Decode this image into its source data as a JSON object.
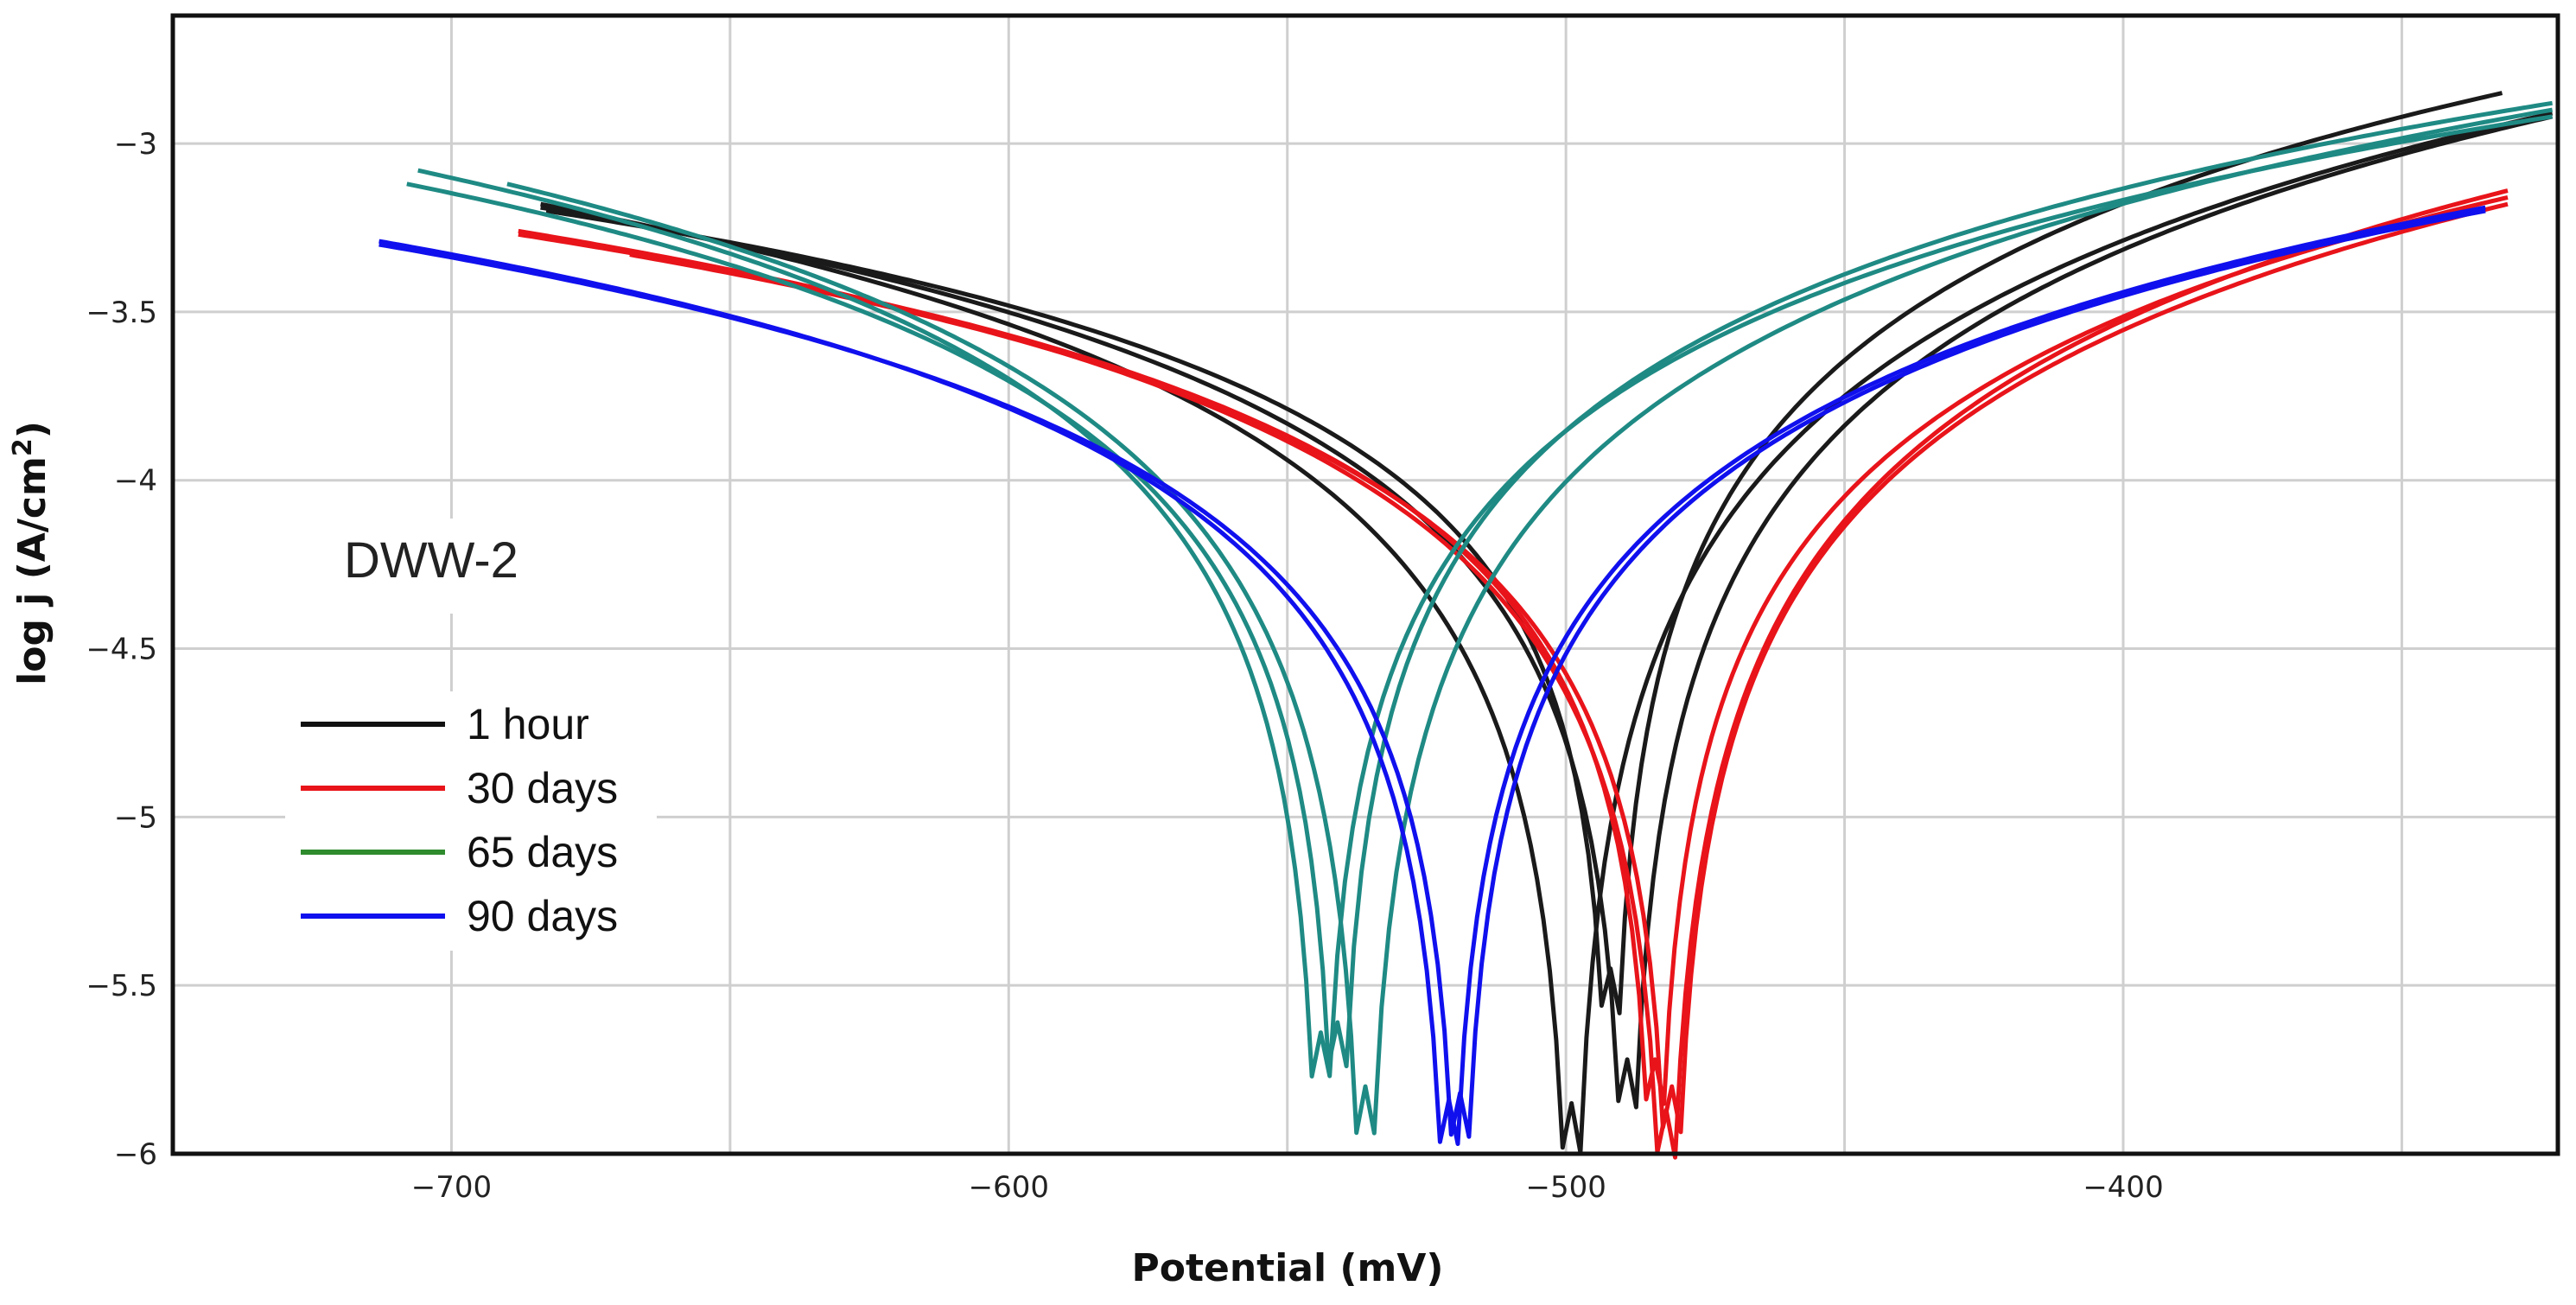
{
  "chart_data": {
    "type": "line",
    "title": "",
    "annotation": "DWW-2",
    "xlabel": "Potential (mV)",
    "ylabel": "log j (A/cm2)",
    "ylabel_base": "log j (A/cm",
    "ylabel_sup": "2",
    "ylabel_close": ")",
    "xlim": [
      -750,
      -322
    ],
    "ylim": [
      -6,
      -2.62
    ],
    "xticks": [
      -700,
      -600,
      -500,
      -400
    ],
    "xticks_grid": [
      -700,
      -650,
      -600,
      -550,
      -500,
      -450,
      -400,
      -350
    ],
    "xtick_labels": [
      "−700",
      "−600",
      "−500",
      "−400"
    ],
    "yticks": [
      -3,
      -3.5,
      -4,
      -4.5,
      -5,
      -5.5,
      -6
    ],
    "ytick_labels": [
      "−3",
      "−3.5",
      "−4",
      "−4.5",
      "−5",
      "−5.5",
      "−6"
    ],
    "grid": true,
    "legend_position": "lower-left",
    "series": [
      {
        "name": "1 hour",
        "color": "#1a1a1a",
        "legend_color": "#111111",
        "curves": [
          {
            "start": [
              -684,
              -3.18
            ],
            "ecorr": -499,
            "jmin": -5.85,
            "end": [
              -323,
              -2.91
            ]
          },
          {
            "start": [
              -684,
              -3.19
            ],
            "ecorr": -489,
            "jmin": -5.72,
            "end": [
              -323,
              -2.92
            ]
          },
          {
            "start": [
              -683,
              -3.2
            ],
            "ecorr": -492,
            "jmin": -5.45,
            "end": [
              -332,
              -2.85
            ]
          }
        ]
      },
      {
        "name": "30 days",
        "color": "#e8141a",
        "legend_color": "#e8141a",
        "curves": [
          {
            "start": [
              -688,
              -3.26
            ],
            "ecorr": -482,
            "jmin": -5.87,
            "end": [
              -331,
              -3.14
            ]
          },
          {
            "start": [
              -688,
              -3.27
            ],
            "ecorr": -484,
            "jmin": -5.72,
            "end": [
              -331,
              -3.16
            ]
          },
          {
            "start": [
              -668,
              -3.33
            ],
            "ecorr": -481,
            "jmin": -5.8,
            "end": [
              -331,
              -3.18
            ]
          }
        ]
      },
      {
        "name": "65 days",
        "color": "#1f8a84",
        "legend_color": "#2e8b2e",
        "curves": [
          {
            "start": [
              -706,
              -3.08
            ],
            "ecorr": -544,
            "jmin": -5.64,
            "end": [
              -323,
              -2.92
            ]
          },
          {
            "start": [
              -708,
              -3.12
            ],
            "ecorr": -541,
            "jmin": -5.61,
            "end": [
              -323,
              -2.88
            ]
          },
          {
            "start": [
              -690,
              -3.12
            ],
            "ecorr": -536,
            "jmin": -5.8,
            "end": [
              -323,
              -2.9
            ]
          }
        ]
      },
      {
        "name": "90 days",
        "color": "#1010ee",
        "legend_color": "#1010ee",
        "curves": [
          {
            "start": [
              -713,
              -3.29
            ],
            "ecorr": -521,
            "jmin": -5.84,
            "end": [
              -335,
              -3.19
            ]
          },
          {
            "start": [
              -713,
              -3.3
            ],
            "ecorr": -519,
            "jmin": -5.82,
            "end": [
              -335,
              -3.2
            ]
          }
        ]
      }
    ]
  }
}
